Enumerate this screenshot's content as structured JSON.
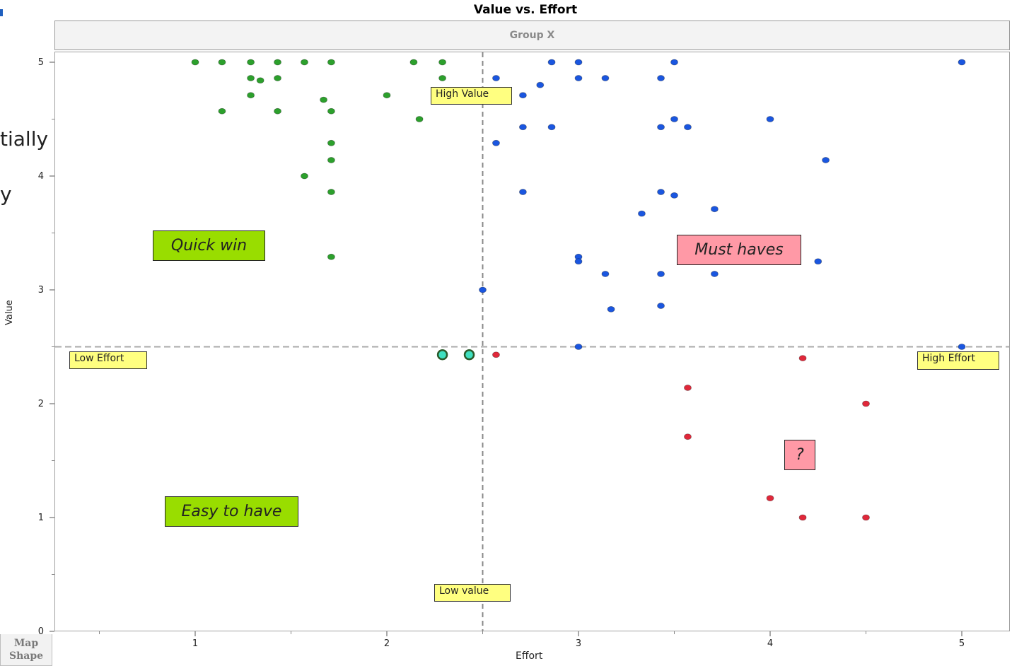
{
  "colors": {
    "green": "#2ca02c",
    "blue": "#1a56e0",
    "red": "#e0283a",
    "teal": "#3fe0c0",
    "label_yellow": "#ffff80",
    "quad_green": "#99dd00",
    "quad_pink": "#ff99a6"
  },
  "partial_text": {
    "line1": "tially",
    "line2": "y"
  },
  "map_shape": {
    "line1": "Map",
    "line2": "Shape"
  },
  "chart_data": {
    "type": "scatter",
    "title": "Value vs. Effort",
    "group": "Group X",
    "xlabel": "Effort",
    "ylabel": "Value",
    "xlim": [
      0.0,
      5.25
    ],
    "ylim": [
      0,
      5.1
    ],
    "xticks": [
      1,
      2,
      3,
      4,
      5
    ],
    "yticks": [
      0,
      1,
      2,
      3,
      4,
      5
    ],
    "reference_lines": {
      "x": 2.5,
      "y": 2.5
    },
    "annotations": {
      "high_value": "High Value",
      "low_value": "Low value",
      "low_effort": "Low Effort",
      "high_effort": "High Effort",
      "quick_win": "Quick win",
      "must_haves": "Must haves",
      "question": "?",
      "easy_to_have": "Easy to have"
    },
    "series": [
      {
        "color": "green",
        "points": [
          [
            1.0,
            5.0
          ],
          [
            1.14,
            5.0
          ],
          [
            1.29,
            5.0
          ],
          [
            1.43,
            5.0
          ],
          [
            1.57,
            5.0
          ],
          [
            1.71,
            5.0
          ],
          [
            2.14,
            5.0
          ],
          [
            2.29,
            5.0
          ],
          [
            1.29,
            4.86
          ],
          [
            1.34,
            4.84
          ],
          [
            1.43,
            4.86
          ],
          [
            2.29,
            4.86
          ],
          [
            1.29,
            4.71
          ],
          [
            2.0,
            4.71
          ],
          [
            1.67,
            4.67
          ],
          [
            1.14,
            4.57
          ],
          [
            1.43,
            4.57
          ],
          [
            1.71,
            4.57
          ],
          [
            2.17,
            4.5
          ],
          [
            1.71,
            4.29
          ],
          [
            1.71,
            4.14
          ],
          [
            1.57,
            4.0
          ],
          [
            1.71,
            3.86
          ],
          [
            1.71,
            3.29
          ]
        ]
      },
      {
        "color": "blue",
        "points": [
          [
            2.86,
            5.0
          ],
          [
            3.0,
            5.0
          ],
          [
            3.5,
            5.0
          ],
          [
            5.0,
            5.0
          ],
          [
            2.57,
            4.86
          ],
          [
            3.0,
            4.86
          ],
          [
            3.14,
            4.86
          ],
          [
            3.43,
            4.86
          ],
          [
            2.8,
            4.8
          ],
          [
            2.71,
            4.71
          ],
          [
            3.5,
            4.5
          ],
          [
            4.0,
            4.5
          ],
          [
            2.71,
            4.43
          ],
          [
            2.86,
            4.43
          ],
          [
            3.43,
            4.43
          ],
          [
            3.57,
            4.43
          ],
          [
            2.57,
            4.29
          ],
          [
            4.29,
            4.14
          ],
          [
            2.71,
            3.86
          ],
          [
            3.43,
            3.86
          ],
          [
            3.5,
            3.83
          ],
          [
            3.71,
            3.71
          ],
          [
            3.33,
            3.67
          ],
          [
            3.0,
            3.29
          ],
          [
            3.0,
            3.25
          ],
          [
            4.25,
            3.25
          ],
          [
            3.14,
            3.14
          ],
          [
            3.43,
            3.14
          ],
          [
            3.71,
            3.14
          ],
          [
            2.5,
            3.0
          ],
          [
            3.17,
            2.83
          ],
          [
            3.43,
            2.86
          ],
          [
            3.0,
            2.5
          ],
          [
            5.0,
            2.5
          ]
        ]
      },
      {
        "color": "red",
        "points": [
          [
            2.57,
            2.43
          ],
          [
            4.17,
            2.4
          ],
          [
            3.57,
            2.14
          ],
          [
            4.5,
            2.0
          ],
          [
            3.57,
            1.71
          ],
          [
            4.0,
            1.17
          ],
          [
            4.17,
            1.0
          ],
          [
            4.5,
            1.0
          ]
        ]
      },
      {
        "color": "teal",
        "points": [
          [
            2.29,
            2.43
          ],
          [
            2.43,
            2.43
          ]
        ]
      }
    ]
  }
}
